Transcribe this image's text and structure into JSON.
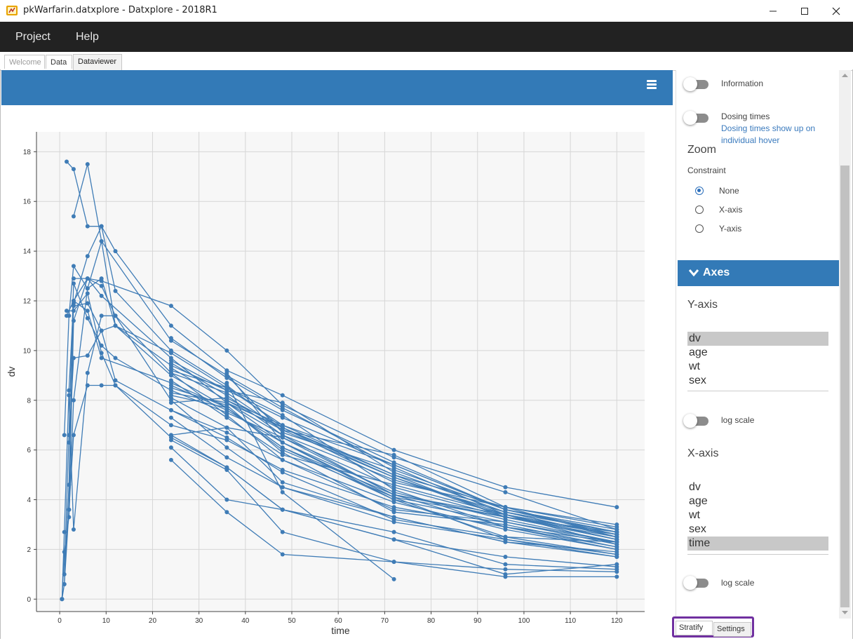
{
  "window": {
    "title": "pkWarfarin.datxplore - Datxplore - 2018R1"
  },
  "menu": {
    "project": "Project",
    "help": "Help"
  },
  "tabs": {
    "welcome": "Welcome",
    "data": "Data",
    "dataviewer": "Dataviewer"
  },
  "sidebar": {
    "information": "Information",
    "dosing_times": "Dosing times",
    "dosing_hint_1": "Dosing times show up on",
    "dosing_hint_2": "individual hover",
    "zoom": "Zoom",
    "constraint": "Constraint",
    "constraint_options": [
      "None",
      "X-axis",
      "Y-axis"
    ],
    "constraint_selected": "None",
    "axes_header": "Axes",
    "y_axis_title": "Y-axis",
    "y_options": [
      "dv",
      "age",
      "wt",
      "sex"
    ],
    "y_selected": "dv",
    "log_scale": "log scale",
    "x_axis_title": "X-axis",
    "x_options": [
      "dv",
      "age",
      "wt",
      "sex",
      "time"
    ],
    "x_selected": "time"
  },
  "bottom_tabs": {
    "stratify": "Stratify",
    "settings": "Settings"
  },
  "colors": {
    "series": "#3f7cb6",
    "header": "#337ab7"
  },
  "chart_data": {
    "type": "line",
    "xlabel": "time",
    "ylabel": "dv",
    "xlim": [
      -5,
      126
    ],
    "ylim": [
      -0.5,
      18.8
    ],
    "xticks": [
      0,
      10,
      20,
      30,
      40,
      50,
      60,
      70,
      80,
      90,
      100,
      110,
      120
    ],
    "yticks": [
      0,
      2,
      4,
      6,
      8,
      10,
      12,
      14,
      16,
      18
    ],
    "grid": true,
    "legend": "none",
    "series": [
      {
        "x": [
          0.5,
          1,
          2,
          3,
          6,
          9,
          12,
          24,
          36,
          48,
          72,
          96,
          120
        ],
        "y": [
          0,
          1.9,
          3.3,
          8.0,
          12.5,
          14.4,
          11.0,
          9.0,
          7.7,
          6.0,
          4.1,
          3.3,
          2.4
        ]
      },
      {
        "x": [
          0.5,
          1,
          2,
          3,
          6,
          9,
          12,
          24,
          36,
          48,
          72,
          96,
          120
        ],
        "y": [
          0,
          2.7,
          8.4,
          12.0,
          12.9,
          12.6,
          11.4,
          8.0,
          6.1,
          4.5,
          3.1,
          2.4,
          1.7
        ]
      },
      {
        "x": [
          0.5,
          1,
          2,
          3,
          6,
          9,
          12,
          24,
          36,
          48,
          72,
          96,
          120
        ],
        "y": [
          0,
          0.6,
          4.6,
          11.9,
          13.8,
          15.0,
          14.0,
          11.0,
          9.2,
          8.2,
          6.0,
          4.5,
          3.7
        ]
      },
      {
        "x": [
          1.5,
          3,
          6,
          9,
          12,
          24,
          36,
          48,
          72,
          96,
          120
        ],
        "y": [
          17.6,
          17.3,
          15.0,
          15.0,
          12.4,
          10.0,
          8.6,
          6.9,
          4.9,
          3.4,
          2.6
        ]
      },
      {
        "x": [
          3,
          6,
          9,
          24,
          36,
          48,
          72,
          96,
          120
        ],
        "y": [
          15.4,
          17.5,
          14.4,
          10.4,
          9.0,
          6.7,
          5.2,
          3.6,
          2.7
        ]
      },
      {
        "x": [
          1,
          2,
          3,
          6,
          9,
          12,
          24,
          36,
          48,
          72,
          96,
          120
        ],
        "y": [
          6.6,
          11.4,
          13.4,
          12.5,
          12.9,
          11.0,
          9.9,
          8.5,
          7.0,
          5.0,
          3.7,
          3.0
        ]
      },
      {
        "x": [
          1,
          2,
          3,
          6,
          9,
          12,
          24,
          36,
          48,
          72,
          96,
          120
        ],
        "y": [
          1.0,
          6.6,
          12.7,
          11.3,
          10.2,
          9.7,
          8.4,
          7.5,
          6.5,
          4.5,
          3.3,
          2.5
        ]
      },
      {
        "x": [
          1,
          2,
          3,
          6,
          9,
          24,
          36,
          48,
          72,
          96,
          120
        ],
        "y": [
          0.6,
          3.6,
          11.2,
          12.9,
          12.2,
          9.7,
          7.9,
          6.3,
          4.3,
          3.2,
          2.3
        ]
      },
      {
        "x": [
          1.5,
          3,
          6,
          9,
          12,
          24,
          36,
          48,
          72,
          96,
          120
        ],
        "y": [
          11.6,
          11.6,
          12.3,
          9.9,
          8.6,
          7.0,
          6.4,
          5.2,
          3.7,
          2.9,
          2.1
        ]
      },
      {
        "x": [
          2,
          3,
          6,
          9,
          12,
          24,
          36,
          48,
          72,
          96,
          120
        ],
        "y": [
          8.2,
          2.8,
          9.1,
          11.4,
          11.4,
          9.1,
          8.3,
          6.8,
          4.9,
          3.3,
          2.6
        ]
      },
      {
        "x": [
          2,
          3,
          6,
          9,
          12,
          24,
          36,
          48,
          72,
          96,
          120
        ],
        "y": [
          3.6,
          6.6,
          8.6,
          8.6,
          8.6,
          6.5,
          5.3,
          3.6,
          2.4,
          1.7,
          1.3
        ]
      },
      {
        "x": [
          2,
          3,
          6,
          9,
          12,
          24,
          36,
          48,
          72,
          96,
          120
        ],
        "y": [
          6.3,
          9.7,
          9.8,
          10.8,
          8.8,
          7.6,
          6.7,
          5.6,
          3.9,
          2.8,
          2.0
        ]
      },
      {
        "x": [
          1.5,
          3,
          6,
          9,
          24,
          36,
          48,
          72,
          96,
          120
        ],
        "y": [
          11.4,
          12.0,
          11.6,
          9.7,
          8.7,
          7.7,
          6.1,
          4.0,
          3.1,
          2.2
        ]
      },
      {
        "x": [
          3,
          6,
          9,
          24,
          36,
          48,
          72,
          96,
          120
        ],
        "y": [
          12.9,
          12.9,
          12.8,
          11.8,
          10.0,
          7.8,
          5.7,
          4.3,
          2.8
        ]
      },
      {
        "x": [
          3,
          6,
          9,
          12,
          24,
          36,
          48,
          72,
          96,
          120
        ],
        "y": [
          11.8,
          11.9,
          10.8,
          11.0,
          9.4,
          8.4,
          7.3,
          5.4,
          3.6,
          2.8
        ]
      },
      {
        "x": [
          24,
          36,
          48,
          72,
          96,
          120
        ],
        "y": [
          8.8,
          7.3,
          5.8,
          4.6,
          3.4,
          2.2
        ]
      },
      {
        "x": [
          24,
          36,
          48,
          72,
          96,
          120
        ],
        "y": [
          8.3,
          7.9,
          6.6,
          4.8,
          3.5,
          2.7
        ]
      },
      {
        "x": [
          24,
          36,
          48,
          72,
          96,
          120
        ],
        "y": [
          8.1,
          6.9,
          4.7,
          3.3,
          2.3,
          1.9
        ]
      },
      {
        "x": [
          24,
          36,
          48,
          72,
          96,
          120
        ],
        "y": [
          9.5,
          8.2,
          6.6,
          4.2,
          2.9,
          2.0
        ]
      },
      {
        "x": [
          24,
          36,
          48,
          72,
          96,
          120
        ],
        "y": [
          10.5,
          8.9,
          7.6,
          5.5,
          3.6,
          2.6
        ]
      },
      {
        "x": [
          24,
          36,
          48,
          72,
          96,
          120
        ],
        "y": [
          9.3,
          8.0,
          6.8,
          5.8,
          3.7,
          2.9
        ]
      },
      {
        "x": [
          24,
          36,
          48,
          72,
          96,
          120
        ],
        "y": [
          6.6,
          6.9,
          6.5,
          4.2,
          3.4,
          2.4
        ]
      },
      {
        "x": [
          24,
          36,
          48,
          72,
          96,
          120
        ],
        "y": [
          9.2,
          8.5,
          7.4,
          4.4,
          2.9,
          2.3
        ]
      },
      {
        "x": [
          24,
          36,
          48,
          72,
          96,
          120
        ],
        "y": [
          8.5,
          7.8,
          5.9,
          3.5,
          3.0,
          2.1
        ]
      },
      {
        "x": [
          24,
          36,
          48,
          72,
          96,
          120
        ],
        "y": [
          9.1,
          7.4,
          5.6,
          3.6,
          3.1,
          2.3
        ]
      },
      {
        "x": [
          24,
          36,
          48,
          72,
          96,
          120
        ],
        "y": [
          7.9,
          8.1,
          6.9,
          5.0,
          3.3,
          2.7
        ]
      },
      {
        "x": [
          24,
          36,
          48,
          72,
          96,
          120
        ],
        "y": [
          8.6,
          7.6,
          6.3,
          4.1,
          2.4,
          1.8
        ]
      },
      {
        "x": [
          24,
          36,
          48,
          72,
          96,
          120
        ],
        "y": [
          9.6,
          8.4,
          7.9,
          5.1,
          3.5,
          2.5
        ]
      },
      {
        "x": [
          24,
          36,
          48,
          72,
          96,
          120
        ],
        "y": [
          8.2,
          7.7,
          6.1,
          4.2,
          3.3,
          2.4
        ]
      },
      {
        "x": [
          24,
          36,
          48,
          72,
          96,
          120
        ],
        "y": [
          7.6,
          6.5,
          5.1,
          3.2,
          2.5,
          1.8
        ]
      },
      {
        "x": [
          24,
          36,
          48,
          72,
          96,
          120
        ],
        "y": [
          7.3,
          5.7,
          4.5,
          3.3,
          2.3,
          1.7
        ]
      },
      {
        "x": [
          24,
          36,
          48,
          72,
          96,
          120
        ],
        "y": [
          6.4,
          5.2,
          2.7,
          1.5,
          1.2,
          1.1
        ]
      },
      {
        "x": [
          24,
          36,
          48,
          72,
          96,
          120
        ],
        "y": [
          6.1,
          4.0,
          3.6,
          2.7,
          1.4,
          1.2
        ]
      },
      {
        "x": [
          24,
          36,
          48,
          72,
          96,
          120
        ],
        "y": [
          5.6,
          3.5,
          1.8,
          1.5,
          0.9,
          0.9
        ]
      },
      {
        "x": [
          24,
          36,
          48,
          72,
          96,
          120
        ],
        "y": [
          6.6,
          5.3,
          3.6,
          2.4,
          1.0,
          1.4
        ]
      },
      {
        "x": [
          36,
          48,
          72,
          96,
          120
        ],
        "y": [
          9.1,
          6.3,
          4.0,
          2.5,
          2.3
        ]
      },
      {
        "x": [
          36,
          48,
          72,
          96,
          120
        ],
        "y": [
          7.9,
          6.9,
          4.7,
          3.7,
          2.5
        ]
      },
      {
        "x": [
          36,
          48,
          72,
          96,
          120
        ],
        "y": [
          9.0,
          7.7,
          5.3,
          3.4,
          2.6
        ]
      },
      {
        "x": [
          36,
          48,
          72,
          96,
          120
        ],
        "y": [
          8.0,
          7.0,
          5.4,
          3.6,
          2.7
        ]
      },
      {
        "x": [
          36,
          48,
          72
        ],
        "y": [
          8.7,
          4.3,
          0.8
        ]
      }
    ]
  }
}
